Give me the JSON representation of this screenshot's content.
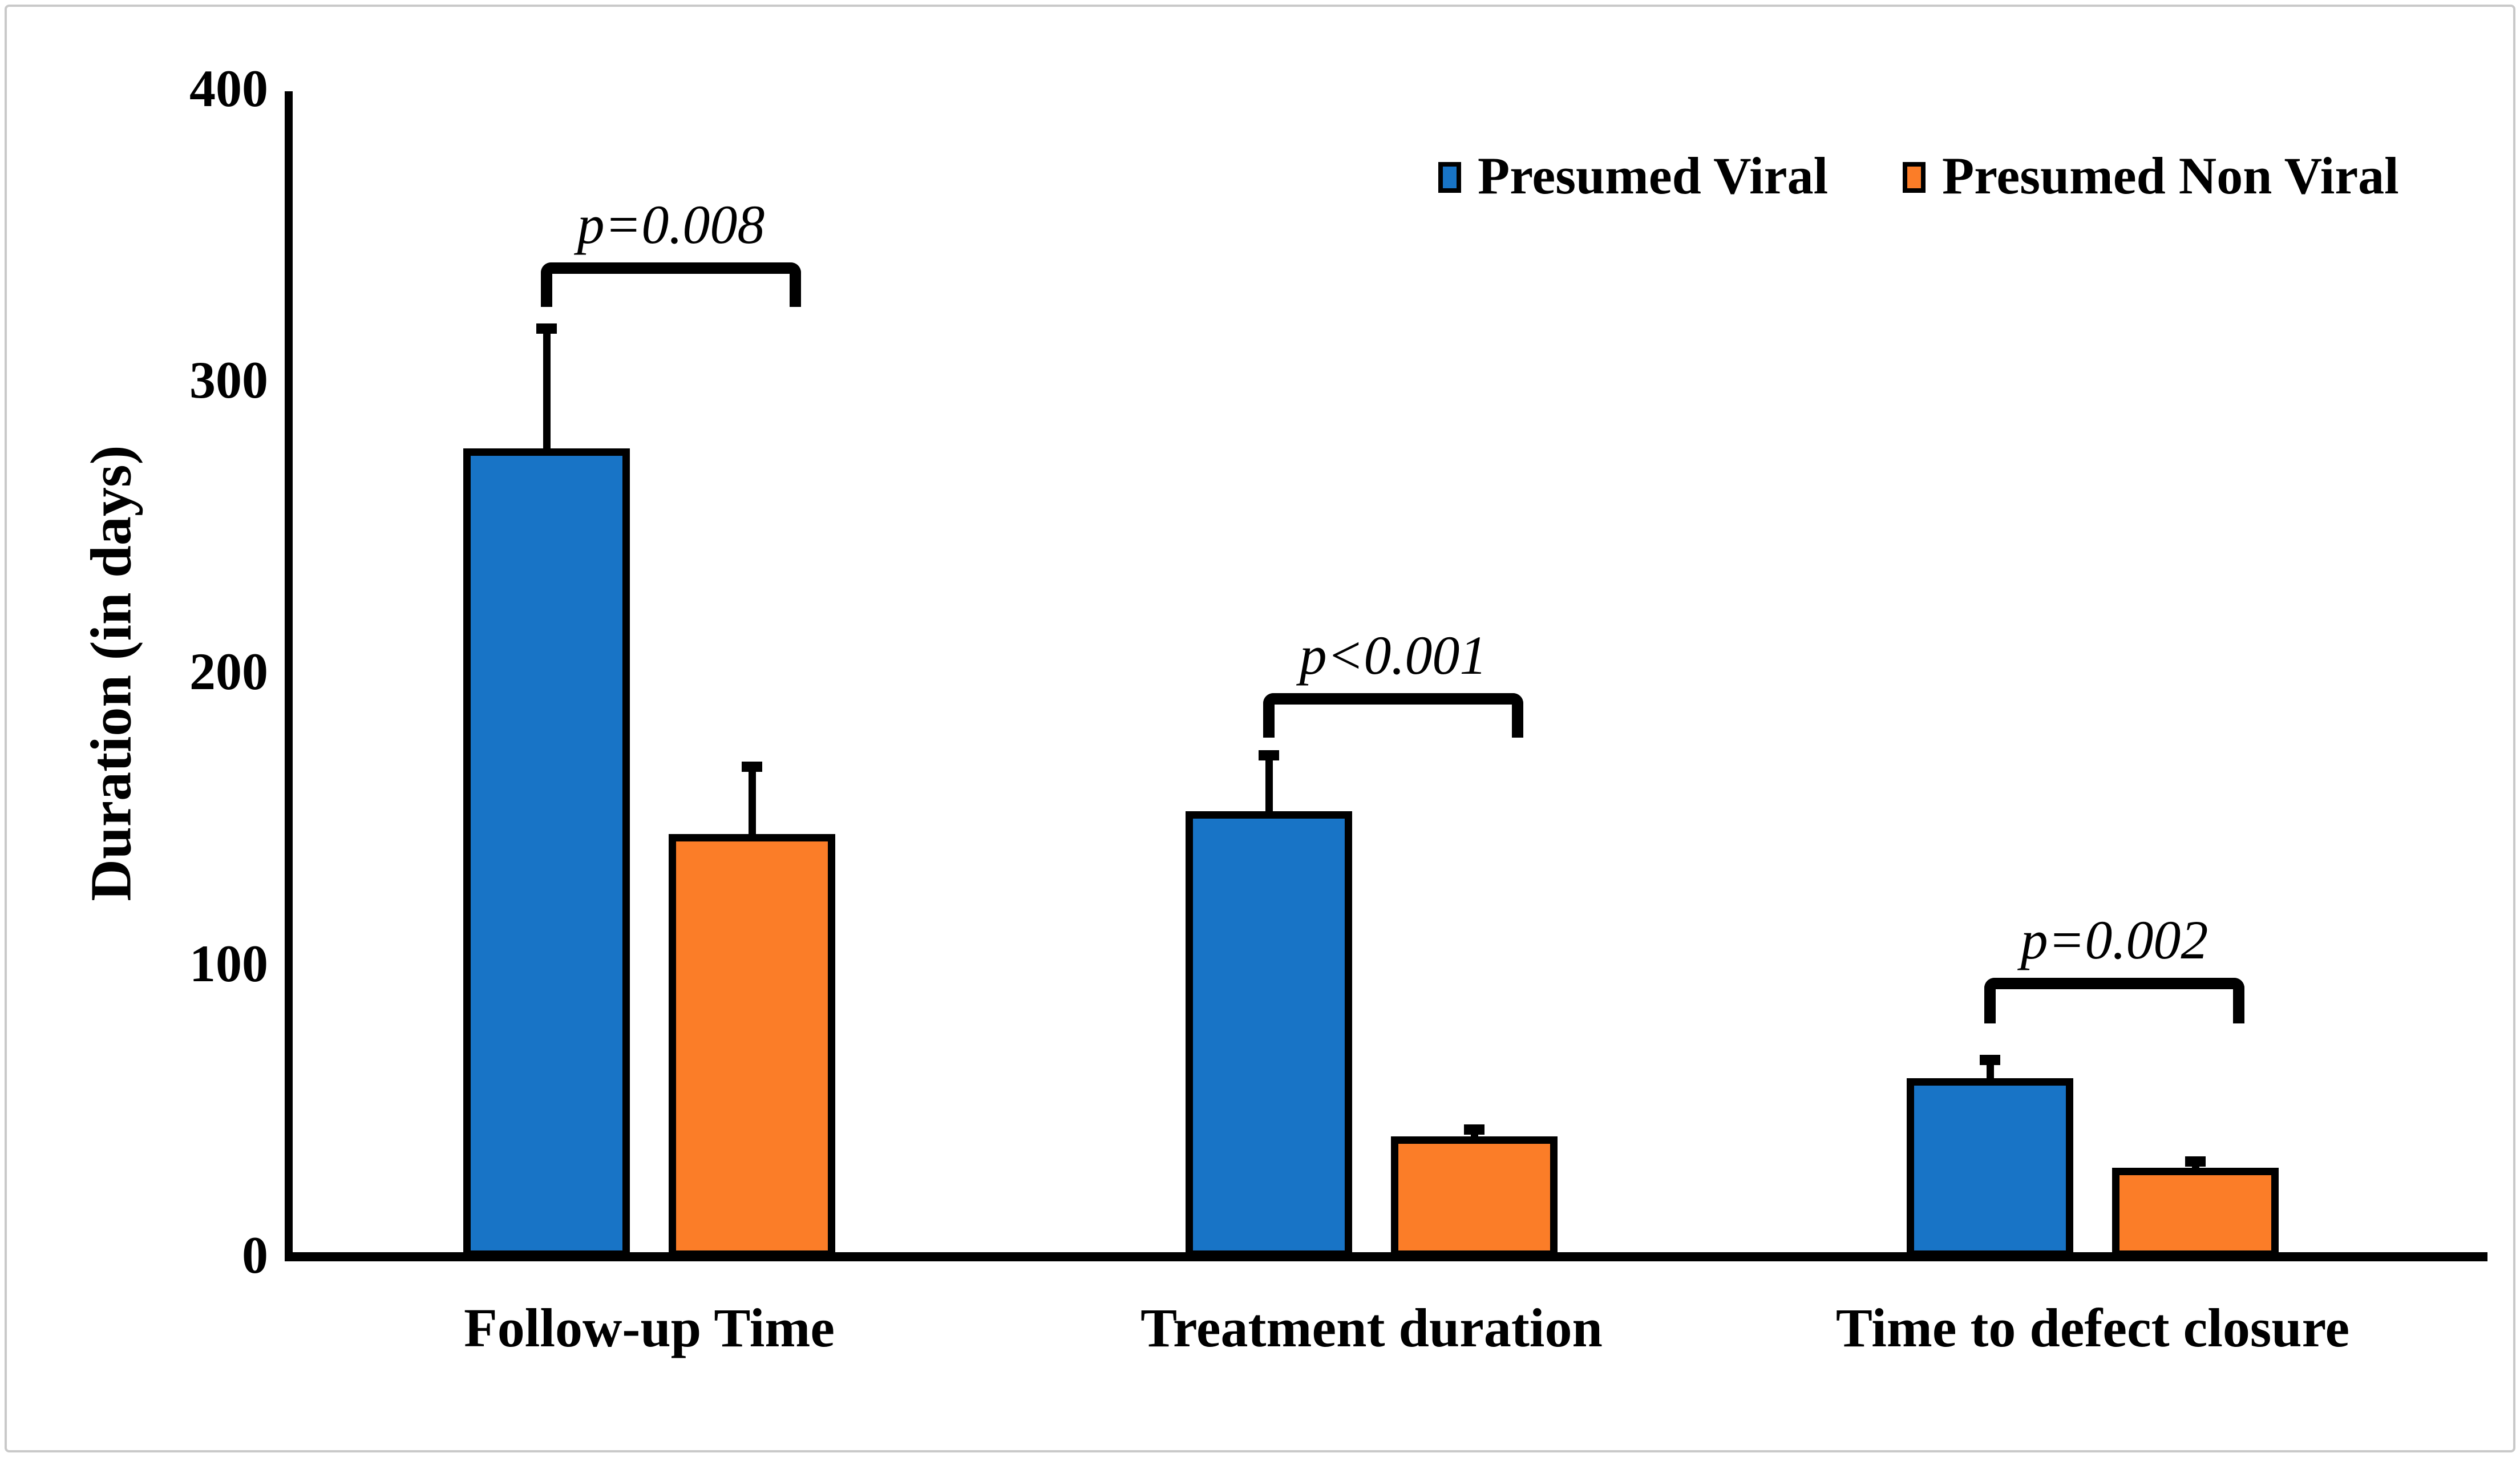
{
  "figure": {
    "background": "#ffffff",
    "frame_color": "#c9c9c9"
  },
  "chart_data": {
    "type": "bar",
    "title": "",
    "ylabel": "Duration (in days)",
    "xlabel": "",
    "ylim": [
      0,
      400
    ],
    "ytick_labels": [
      "400",
      "300",
      "200",
      "100",
      "0"
    ],
    "categories": [
      "Follow-up Time",
      "Treatment duration",
      "Time to defect closure"
    ],
    "series": [
      {
        "name": "Presumed Viral",
        "color": "#1874C6",
        "values": [
          277,
          152,
          60
        ],
        "error_plus": [
          43,
          21,
          8
        ]
      },
      {
        "name": "Presumed Non Viral",
        "color": "#FB7D28",
        "values": [
          144,
          40,
          29
        ],
        "error_plus": [
          25,
          4,
          4
        ]
      }
    ],
    "significance_labels": [
      {
        "label": "p=0.008",
        "category": "Follow-up Time"
      },
      {
        "label": "p<0.001",
        "category": "Treatment duration"
      },
      {
        "label": "p=0.002",
        "category": "Time to defect closure"
      }
    ],
    "legend_position": "top-right",
    "grid": false,
    "error_bars": "plus-only",
    "axis_color": "#000000"
  }
}
